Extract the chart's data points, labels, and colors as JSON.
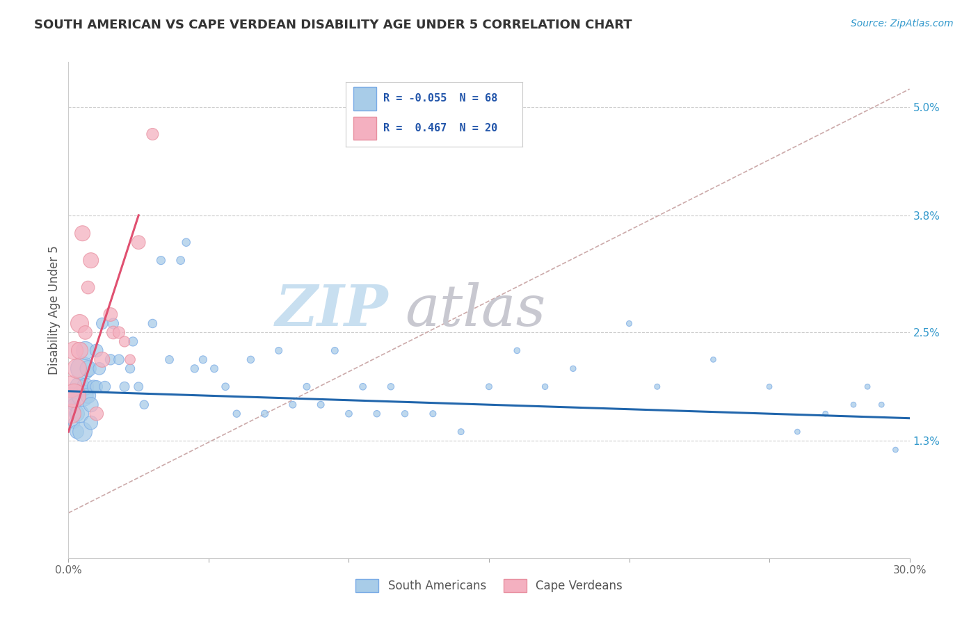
{
  "title": "SOUTH AMERICAN VS CAPE VERDEAN DISABILITY AGE UNDER 5 CORRELATION CHART",
  "source": "Source: ZipAtlas.com",
  "ylabel": "Disability Age Under 5",
  "xlim": [
    0.0,
    0.3
  ],
  "ylim": [
    0.0,
    0.055
  ],
  "xticks": [
    0.0,
    0.05,
    0.1,
    0.15,
    0.2,
    0.25,
    0.3
  ],
  "xticklabels": [
    "0.0%",
    "",
    "",
    "",
    "",
    "",
    "30.0%"
  ],
  "yticks_right": [
    0.013,
    0.025,
    0.038,
    0.05
  ],
  "yticklabels_right": [
    "1.3%",
    "2.5%",
    "3.8%",
    "5.0%"
  ],
  "blue_scatter_color": "#a8cce8",
  "blue_edge_color": "#7aabe6",
  "pink_scatter_color": "#f4b0c0",
  "pink_edge_color": "#e890a0",
  "blue_line_color": "#2166ac",
  "pink_line_color": "#e05070",
  "ref_line_color": "#ccaaaa",
  "grid_color": "#cccccc",
  "watermark_zip_color": "#c8dff0",
  "watermark_atlas_color": "#c8c8d0",
  "sa_x": [
    0.001,
    0.002,
    0.002,
    0.003,
    0.003,
    0.004,
    0.004,
    0.005,
    0.005,
    0.005,
    0.006,
    0.006,
    0.007,
    0.007,
    0.008,
    0.008,
    0.009,
    0.01,
    0.01,
    0.011,
    0.012,
    0.013,
    0.015,
    0.016,
    0.018,
    0.02,
    0.022,
    0.023,
    0.025,
    0.027,
    0.03,
    0.033,
    0.036,
    0.04,
    0.042,
    0.045,
    0.048,
    0.052,
    0.056,
    0.06,
    0.065,
    0.07,
    0.075,
    0.08,
    0.085,
    0.09,
    0.095,
    0.1,
    0.105,
    0.11,
    0.115,
    0.12,
    0.13,
    0.14,
    0.15,
    0.16,
    0.17,
    0.18,
    0.2,
    0.21,
    0.23,
    0.25,
    0.26,
    0.27,
    0.28,
    0.285,
    0.29,
    0.295
  ],
  "sa_y": [
    0.018,
    0.017,
    0.015,
    0.016,
    0.014,
    0.019,
    0.016,
    0.021,
    0.018,
    0.014,
    0.023,
    0.019,
    0.021,
    0.018,
    0.017,
    0.015,
    0.019,
    0.023,
    0.019,
    0.021,
    0.026,
    0.019,
    0.022,
    0.026,
    0.022,
    0.019,
    0.021,
    0.024,
    0.019,
    0.017,
    0.026,
    0.033,
    0.022,
    0.033,
    0.035,
    0.021,
    0.022,
    0.021,
    0.019,
    0.016,
    0.022,
    0.016,
    0.023,
    0.017,
    0.019,
    0.017,
    0.023,
    0.016,
    0.019,
    0.016,
    0.019,
    0.016,
    0.016,
    0.014,
    0.019,
    0.023,
    0.019,
    0.021,
    0.026,
    0.019,
    0.022,
    0.019,
    0.014,
    0.016,
    0.017,
    0.019,
    0.017,
    0.012
  ],
  "sa_sizes": [
    300,
    180,
    140,
    250,
    200,
    400,
    350,
    600,
    500,
    400,
    350,
    300,
    280,
    250,
    230,
    200,
    180,
    180,
    160,
    160,
    140,
    130,
    120,
    120,
    110,
    100,
    90,
    90,
    85,
    80,
    80,
    75,
    70,
    70,
    68,
    65,
    63,
    60,
    58,
    55,
    55,
    52,
    50,
    50,
    50,
    50,
    50,
    48,
    48,
    46,
    45,
    44,
    42,
    40,
    40,
    38,
    36,
    35,
    33,
    32,
    30,
    30,
    30,
    30,
    30,
    30,
    30,
    30
  ],
  "cv_x": [
    0.001,
    0.001,
    0.002,
    0.002,
    0.003,
    0.004,
    0.004,
    0.005,
    0.006,
    0.007,
    0.008,
    0.01,
    0.012,
    0.015,
    0.016,
    0.018,
    0.02,
    0.022,
    0.025,
    0.03
  ],
  "cv_y": [
    0.019,
    0.016,
    0.023,
    0.018,
    0.021,
    0.026,
    0.023,
    0.036,
    0.025,
    0.03,
    0.033,
    0.016,
    0.022,
    0.027,
    0.025,
    0.025,
    0.024,
    0.022,
    0.035,
    0.047
  ],
  "cv_sizes": [
    500,
    400,
    350,
    600,
    400,
    350,
    300,
    250,
    200,
    180,
    250,
    200,
    250,
    200,
    180,
    150,
    120,
    110,
    200,
    150
  ],
  "sa_line_x": [
    0.0,
    0.3
  ],
  "sa_line_y": [
    0.0185,
    0.0155
  ],
  "cv_line_x": [
    0.0,
    0.025
  ],
  "cv_line_y": [
    0.014,
    0.038
  ],
  "ref_line_x": [
    0.0,
    0.3
  ],
  "ref_line_y": [
    0.005,
    0.052
  ]
}
